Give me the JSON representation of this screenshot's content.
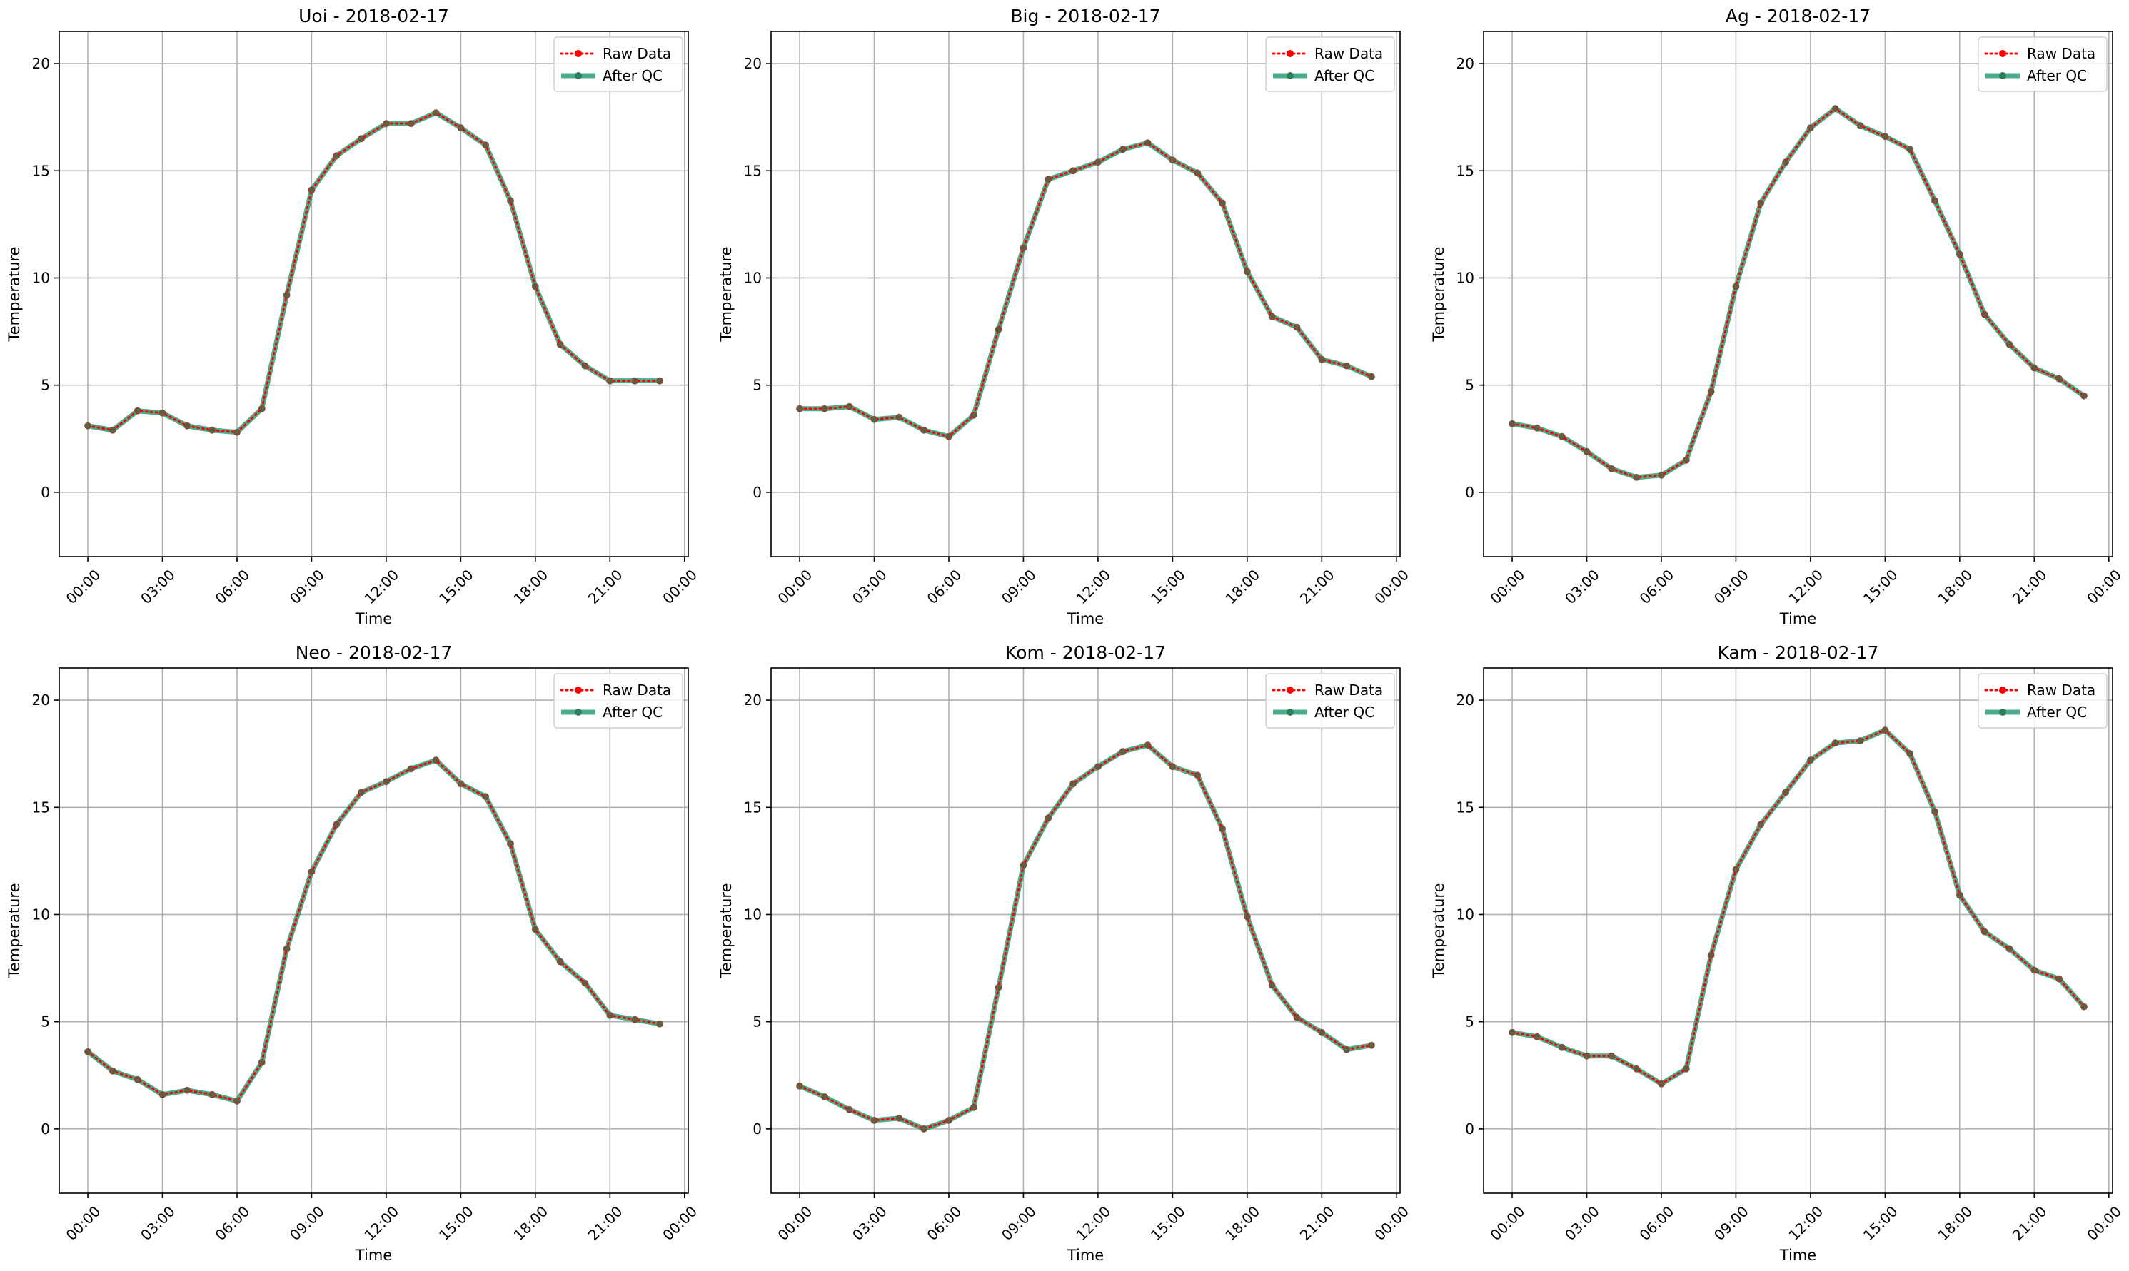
{
  "chart_data": [
    {
      "type": "line",
      "title": "Uoi - 2018-02-17",
      "xlabel": "Time",
      "ylabel": "Temperature",
      "x": [
        "00:00",
        "01:00",
        "02:00",
        "03:00",
        "04:00",
        "05:00",
        "06:00",
        "07:00",
        "08:00",
        "09:00",
        "10:00",
        "11:00",
        "12:00",
        "13:00",
        "14:00",
        "15:00",
        "16:00",
        "17:00",
        "18:00",
        "19:00",
        "20:00",
        "21:00",
        "22:00",
        "23:00"
      ],
      "xticks": [
        "00:00",
        "03:00",
        "06:00",
        "09:00",
        "12:00",
        "15:00",
        "18:00",
        "21:00",
        "00:00"
      ],
      "yticks": [
        0,
        5,
        10,
        15,
        20
      ],
      "ylim": [
        -3,
        21.5
      ],
      "grid": true,
      "legend_position": "top-right",
      "series": [
        {
          "name": "Raw Data",
          "color": "#ff0000",
          "values": [
            3.1,
            2.9,
            3.8,
            3.7,
            3.1,
            2.9,
            2.8,
            3.9,
            9.2,
            14.1,
            15.7,
            16.5,
            17.2,
            17.2,
            17.7,
            17.0,
            16.2,
            13.6,
            9.6,
            6.9,
            5.9,
            5.2,
            5.2,
            5.2
          ]
        },
        {
          "name": "After QC",
          "color": "#2a9d77",
          "values": [
            3.1,
            2.9,
            3.8,
            3.7,
            3.1,
            2.9,
            2.8,
            3.9,
            9.2,
            14.1,
            15.7,
            16.5,
            17.2,
            17.2,
            17.7,
            17.0,
            16.2,
            13.6,
            9.6,
            6.9,
            5.9,
            5.2,
            5.2,
            5.2
          ]
        }
      ]
    },
    {
      "type": "line",
      "title": "Big - 2018-02-17",
      "xlabel": "Time",
      "ylabel": "Temperature",
      "x": [
        "00:00",
        "01:00",
        "02:00",
        "03:00",
        "04:00",
        "05:00",
        "06:00",
        "07:00",
        "08:00",
        "09:00",
        "10:00",
        "11:00",
        "12:00",
        "13:00",
        "14:00",
        "15:00",
        "16:00",
        "17:00",
        "18:00",
        "19:00",
        "20:00",
        "21:00",
        "22:00",
        "23:00"
      ],
      "xticks": [
        "00:00",
        "03:00",
        "06:00",
        "09:00",
        "12:00",
        "15:00",
        "18:00",
        "21:00",
        "00:00"
      ],
      "yticks": [
        0,
        5,
        10,
        15,
        20
      ],
      "ylim": [
        -3,
        21.5
      ],
      "grid": true,
      "legend_position": "top-right",
      "series": [
        {
          "name": "Raw Data",
          "color": "#ff0000",
          "values": [
            3.9,
            3.9,
            4.0,
            3.4,
            3.5,
            2.9,
            2.6,
            3.6,
            7.6,
            11.4,
            14.6,
            15.0,
            15.4,
            16.0,
            16.3,
            15.5,
            14.9,
            13.5,
            10.3,
            8.2,
            7.7,
            6.2,
            5.9,
            5.4
          ]
        },
        {
          "name": "After QC",
          "color": "#2a9d77",
          "values": [
            3.9,
            3.9,
            4.0,
            3.4,
            3.5,
            2.9,
            2.6,
            3.6,
            7.6,
            11.4,
            14.6,
            15.0,
            15.4,
            16.0,
            16.3,
            15.5,
            14.9,
            13.5,
            10.3,
            8.2,
            7.7,
            6.2,
            5.9,
            5.4
          ]
        }
      ]
    },
    {
      "type": "line",
      "title": "Ag - 2018-02-17",
      "xlabel": "Time",
      "ylabel": "Temperature",
      "x": [
        "00:00",
        "01:00",
        "02:00",
        "03:00",
        "04:00",
        "05:00",
        "06:00",
        "07:00",
        "08:00",
        "09:00",
        "10:00",
        "11:00",
        "12:00",
        "13:00",
        "14:00",
        "15:00",
        "16:00",
        "17:00",
        "18:00",
        "19:00",
        "20:00",
        "21:00",
        "22:00",
        "23:00"
      ],
      "xticks": [
        "00:00",
        "03:00",
        "06:00",
        "09:00",
        "12:00",
        "15:00",
        "18:00",
        "21:00",
        "00:00"
      ],
      "yticks": [
        0,
        5,
        10,
        15,
        20
      ],
      "ylim": [
        -3,
        21.5
      ],
      "grid": true,
      "legend_position": "top-right",
      "series": [
        {
          "name": "Raw Data",
          "color": "#ff0000",
          "values": [
            3.2,
            3.0,
            2.6,
            1.9,
            1.1,
            0.7,
            0.8,
            1.5,
            4.7,
            9.6,
            13.5,
            15.4,
            17.0,
            17.9,
            17.1,
            16.6,
            16.0,
            13.6,
            11.1,
            8.3,
            6.9,
            5.8,
            5.3,
            4.5
          ]
        },
        {
          "name": "After QC",
          "color": "#2a9d77",
          "values": [
            3.2,
            3.0,
            2.6,
            1.9,
            1.1,
            0.7,
            0.8,
            1.5,
            4.7,
            9.6,
            13.5,
            15.4,
            17.0,
            17.9,
            17.1,
            16.6,
            16.0,
            13.6,
            11.1,
            8.3,
            6.9,
            5.8,
            5.3,
            4.5
          ]
        }
      ]
    },
    {
      "type": "line",
      "title": "Neo - 2018-02-17",
      "xlabel": "Time",
      "ylabel": "Temperature",
      "x": [
        "00:00",
        "01:00",
        "02:00",
        "03:00",
        "04:00",
        "05:00",
        "06:00",
        "07:00",
        "08:00",
        "09:00",
        "10:00",
        "11:00",
        "12:00",
        "13:00",
        "14:00",
        "15:00",
        "16:00",
        "17:00",
        "18:00",
        "19:00",
        "20:00",
        "21:00",
        "22:00",
        "23:00"
      ],
      "xticks": [
        "00:00",
        "03:00",
        "06:00",
        "09:00",
        "12:00",
        "15:00",
        "18:00",
        "21:00",
        "00:00"
      ],
      "yticks": [
        0,
        5,
        10,
        15,
        20
      ],
      "ylim": [
        -3,
        21.5
      ],
      "grid": true,
      "legend_position": "top-right",
      "series": [
        {
          "name": "Raw Data",
          "color": "#ff0000",
          "values": [
            3.6,
            2.7,
            2.3,
            1.6,
            1.8,
            1.6,
            1.3,
            3.1,
            8.4,
            12.0,
            14.2,
            15.7,
            16.2,
            16.8,
            17.2,
            16.1,
            15.5,
            13.3,
            9.3,
            7.8,
            6.8,
            5.3,
            5.1,
            4.9
          ]
        },
        {
          "name": "After QC",
          "color": "#2a9d77",
          "values": [
            3.6,
            2.7,
            2.3,
            1.6,
            1.8,
            1.6,
            1.3,
            3.1,
            8.4,
            12.0,
            14.2,
            15.7,
            16.2,
            16.8,
            17.2,
            16.1,
            15.5,
            13.3,
            9.3,
            7.8,
            6.8,
            5.3,
            5.1,
            4.9
          ]
        }
      ]
    },
    {
      "type": "line",
      "title": "Kom - 2018-02-17",
      "xlabel": "Time",
      "ylabel": "Temperature",
      "x": [
        "00:00",
        "01:00",
        "02:00",
        "03:00",
        "04:00",
        "05:00",
        "06:00",
        "07:00",
        "08:00",
        "09:00",
        "10:00",
        "11:00",
        "12:00",
        "13:00",
        "14:00",
        "15:00",
        "16:00",
        "17:00",
        "18:00",
        "19:00",
        "20:00",
        "21:00",
        "22:00",
        "23:00"
      ],
      "xticks": [
        "00:00",
        "03:00",
        "06:00",
        "09:00",
        "12:00",
        "15:00",
        "18:00",
        "21:00",
        "00:00"
      ],
      "yticks": [
        0,
        5,
        10,
        15,
        20
      ],
      "ylim": [
        -3,
        21.5
      ],
      "grid": true,
      "legend_position": "top-right",
      "series": [
        {
          "name": "Raw Data",
          "color": "#ff0000",
          "values": [
            2.0,
            1.5,
            0.9,
            0.4,
            0.5,
            0.0,
            0.4,
            1.0,
            6.6,
            12.3,
            14.5,
            16.1,
            16.9,
            17.6,
            17.9,
            16.9,
            16.5,
            14.0,
            9.9,
            6.7,
            5.2,
            4.5,
            3.7,
            3.9
          ]
        },
        {
          "name": "After QC",
          "color": "#2a9d77",
          "values": [
            2.0,
            1.5,
            0.9,
            0.4,
            0.5,
            0.0,
            0.4,
            1.0,
            6.6,
            12.3,
            14.5,
            16.1,
            16.9,
            17.6,
            17.9,
            16.9,
            16.5,
            14.0,
            9.9,
            6.7,
            5.2,
            4.5,
            3.7,
            3.9
          ]
        }
      ]
    },
    {
      "type": "line",
      "title": "Kam - 2018-02-17",
      "xlabel": "Time",
      "ylabel": "Temperature",
      "x": [
        "00:00",
        "01:00",
        "02:00",
        "03:00",
        "04:00",
        "05:00",
        "06:00",
        "07:00",
        "08:00",
        "09:00",
        "10:00",
        "11:00",
        "12:00",
        "13:00",
        "14:00",
        "15:00",
        "16:00",
        "17:00",
        "18:00",
        "19:00",
        "20:00",
        "21:00",
        "22:00",
        "23:00"
      ],
      "xticks": [
        "00:00",
        "03:00",
        "06:00",
        "09:00",
        "12:00",
        "15:00",
        "18:00",
        "21:00",
        "00:00"
      ],
      "yticks": [
        0,
        5,
        10,
        15,
        20
      ],
      "ylim": [
        -3,
        21.5
      ],
      "grid": true,
      "legend_position": "top-right",
      "series": [
        {
          "name": "Raw Data",
          "color": "#ff0000",
          "values": [
            4.5,
            4.3,
            3.8,
            3.4,
            3.4,
            2.8,
            2.1,
            2.8,
            8.1,
            12.1,
            14.2,
            15.7,
            17.2,
            18.0,
            18.1,
            18.6,
            17.5,
            14.8,
            10.9,
            9.2,
            8.4,
            7.4,
            7.0,
            5.7
          ]
        },
        {
          "name": "After QC",
          "color": "#2a9d77",
          "values": [
            4.5,
            4.3,
            3.8,
            3.4,
            3.4,
            2.8,
            2.1,
            2.8,
            8.1,
            12.1,
            14.2,
            15.7,
            17.2,
            18.0,
            18.1,
            18.6,
            17.5,
            14.8,
            10.9,
            9.2,
            8.4,
            7.4,
            7.0,
            5.7
          ]
        }
      ]
    }
  ]
}
